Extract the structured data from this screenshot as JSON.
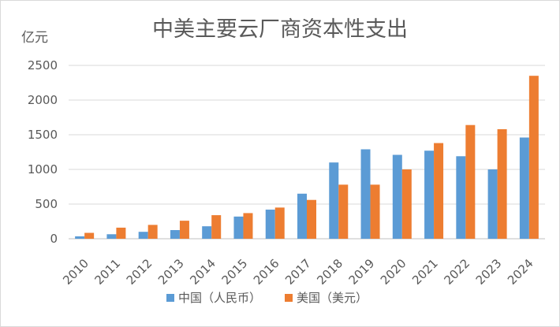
{
  "chart_data": {
    "type": "bar",
    "title": "中美主要云厂商资本性支出",
    "ylabel": "亿元",
    "xlabel": "",
    "ylim": [
      0,
      2500
    ],
    "yticks": [
      0,
      500,
      1000,
      1500,
      2000,
      2500
    ],
    "categories": [
      "2010",
      "2011",
      "2012",
      "2013",
      "2014",
      "2015",
      "2016",
      "2017",
      "2018",
      "2019",
      "2020",
      "2021",
      "2022",
      "2023",
      "2024"
    ],
    "series": [
      {
        "name": "中国（人民币）",
        "color": "#5B9BD5",
        "values": [
          35,
          65,
          100,
          125,
          180,
          320,
          420,
          650,
          1100,
          1290,
          1210,
          1270,
          1190,
          1000,
          1460
        ]
      },
      {
        "name": "美国（美元）",
        "color": "#ED7D31",
        "values": [
          85,
          160,
          200,
          260,
          340,
          370,
          450,
          560,
          780,
          780,
          1000,
          1380,
          1640,
          1580,
          2350
        ]
      }
    ],
    "grid": true,
    "legend_position": "bottom"
  }
}
